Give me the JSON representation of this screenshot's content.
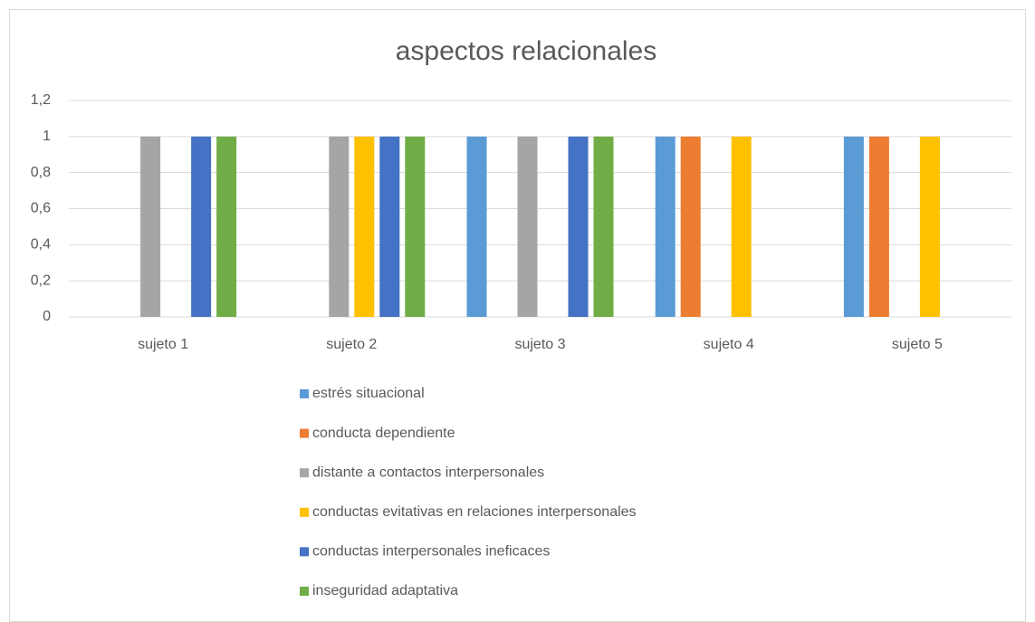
{
  "chart_data": {
    "type": "bar",
    "title": "aspectos relacionales",
    "categories": [
      "sujeto 1",
      "sujeto 2",
      "sujeto 3",
      "sujeto 4",
      "sujeto 5"
    ],
    "series": [
      {
        "name": "estrés situacional",
        "color": "#5b9bd5",
        "values": [
          0,
          0,
          1,
          1,
          1
        ]
      },
      {
        "name": "conducta dependiente",
        "color": "#ed7d31",
        "values": [
          0,
          0,
          0,
          1,
          1
        ]
      },
      {
        "name": "distante a contactos interpersonales",
        "color": "#a5a5a5",
        "values": [
          1,
          1,
          1,
          0,
          0
        ]
      },
      {
        "name": "conductas evitativas en relaciones interpersonales",
        "color": "#ffc000",
        "values": [
          0,
          1,
          0,
          1,
          1
        ]
      },
      {
        "name": "conductas interpersonales ineficaces",
        "color": "#4472c4",
        "values": [
          1,
          1,
          1,
          0,
          0
        ]
      },
      {
        "name": "inseguridad adaptativa",
        "color": "#70ad47",
        "values": [
          1,
          1,
          1,
          0,
          0
        ]
      }
    ],
    "ylim": [
      0,
      1.2
    ],
    "yticks": [
      0,
      {
        "value": 0.2,
        "label": "0,2"
      },
      {
        "value": 0.4,
        "label": "0,4"
      },
      {
        "value": 0.6,
        "label": "0,6"
      },
      {
        "value": 0.8,
        "label": "0,8"
      },
      1,
      {
        "value": 1.2,
        "label": "1,2"
      }
    ],
    "grid": true,
    "legend": "bottom"
  }
}
